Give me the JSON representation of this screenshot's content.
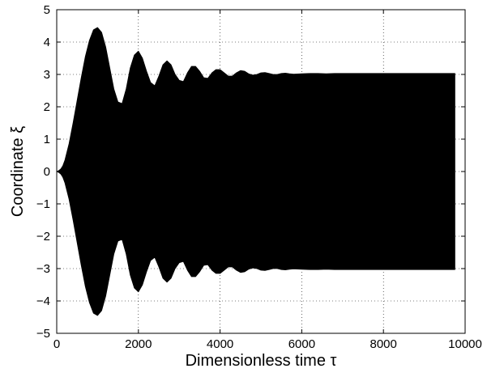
{
  "chart_data": {
    "type": "area",
    "title": "",
    "xlabel": "Dimensionless time τ",
    "ylabel": "Coordinate ξ",
    "xlim": [
      0,
      10000
    ],
    "ylim": [
      -5,
      5
    ],
    "xticks": [
      0,
      2000,
      4000,
      6000,
      8000,
      10000
    ],
    "yticks": [
      -5,
      -4,
      -3,
      -2,
      -1,
      0,
      1,
      2,
      3,
      4,
      5
    ],
    "grid": true,
    "grid_style": "dotted",
    "fill_color": "#000000",
    "series": [
      {
        "envelope_x": [
          0,
          50,
          100,
          150,
          200,
          300,
          400,
          500,
          600,
          700,
          800,
          900,
          1000,
          1100,
          1200,
          1300,
          1400,
          1500,
          1600,
          1700,
          1800,
          1900,
          2000,
          2100,
          2200,
          2300,
          2400,
          2500,
          2600,
          2700,
          2800,
          2900,
          3000,
          3100,
          3200,
          3300,
          3400,
          3500,
          3600,
          3700,
          3800,
          3900,
          4000,
          4100,
          4200,
          4300,
          4400,
          4500,
          4600,
          4700,
          4800,
          4900,
          5000,
          5100,
          5200,
          5300,
          5400,
          5500,
          5600,
          5700,
          5800,
          6000,
          6200,
          6400,
          6600,
          6800,
          7000,
          7500,
          8000,
          8500,
          9000,
          9500,
          9750
        ],
        "envelope_upper": [
          0.0,
          0.03,
          0.08,
          0.18,
          0.35,
          0.85,
          1.5,
          2.2,
          2.9,
          3.55,
          4.05,
          4.38,
          4.45,
          4.3,
          3.85,
          3.2,
          2.55,
          2.15,
          2.1,
          2.55,
          3.2,
          3.6,
          3.72,
          3.5,
          3.1,
          2.75,
          2.65,
          2.95,
          3.3,
          3.42,
          3.3,
          3.0,
          2.82,
          2.78,
          3.05,
          3.25,
          3.25,
          3.1,
          2.9,
          2.88,
          3.05,
          3.15,
          3.15,
          3.05,
          2.95,
          2.95,
          3.05,
          3.12,
          3.1,
          3.02,
          2.98,
          3.0,
          3.05,
          3.06,
          3.03,
          3.0,
          3.0,
          3.03,
          3.04,
          3.02,
          3.01,
          3.02,
          3.03,
          3.03,
          3.02,
          3.03,
          3.03,
          3.03,
          3.03,
          3.03,
          3.03,
          3.03,
          3.03
        ],
        "envelope_lower": [
          0.0,
          -0.03,
          -0.08,
          -0.18,
          -0.35,
          -0.85,
          -1.5,
          -2.2,
          -2.9,
          -3.55,
          -4.05,
          -4.38,
          -4.45,
          -4.3,
          -3.85,
          -3.2,
          -2.55,
          -2.15,
          -2.1,
          -2.55,
          -3.2,
          -3.6,
          -3.72,
          -3.5,
          -3.1,
          -2.75,
          -2.65,
          -2.95,
          -3.3,
          -3.42,
          -3.3,
          -3.0,
          -2.82,
          -2.78,
          -3.05,
          -3.25,
          -3.25,
          -3.1,
          -2.9,
          -2.88,
          -3.05,
          -3.15,
          -3.15,
          -3.05,
          -2.95,
          -2.95,
          -3.05,
          -3.12,
          -3.1,
          -3.02,
          -2.98,
          -3.0,
          -3.05,
          -3.06,
          -3.03,
          -3.0,
          -3.0,
          -3.03,
          -3.04,
          -3.02,
          -3.01,
          -3.02,
          -3.03,
          -3.03,
          -3.02,
          -3.03,
          -3.03,
          -3.03,
          -3.03,
          -3.03,
          -3.03,
          -3.03,
          -3.03
        ]
      }
    ]
  }
}
